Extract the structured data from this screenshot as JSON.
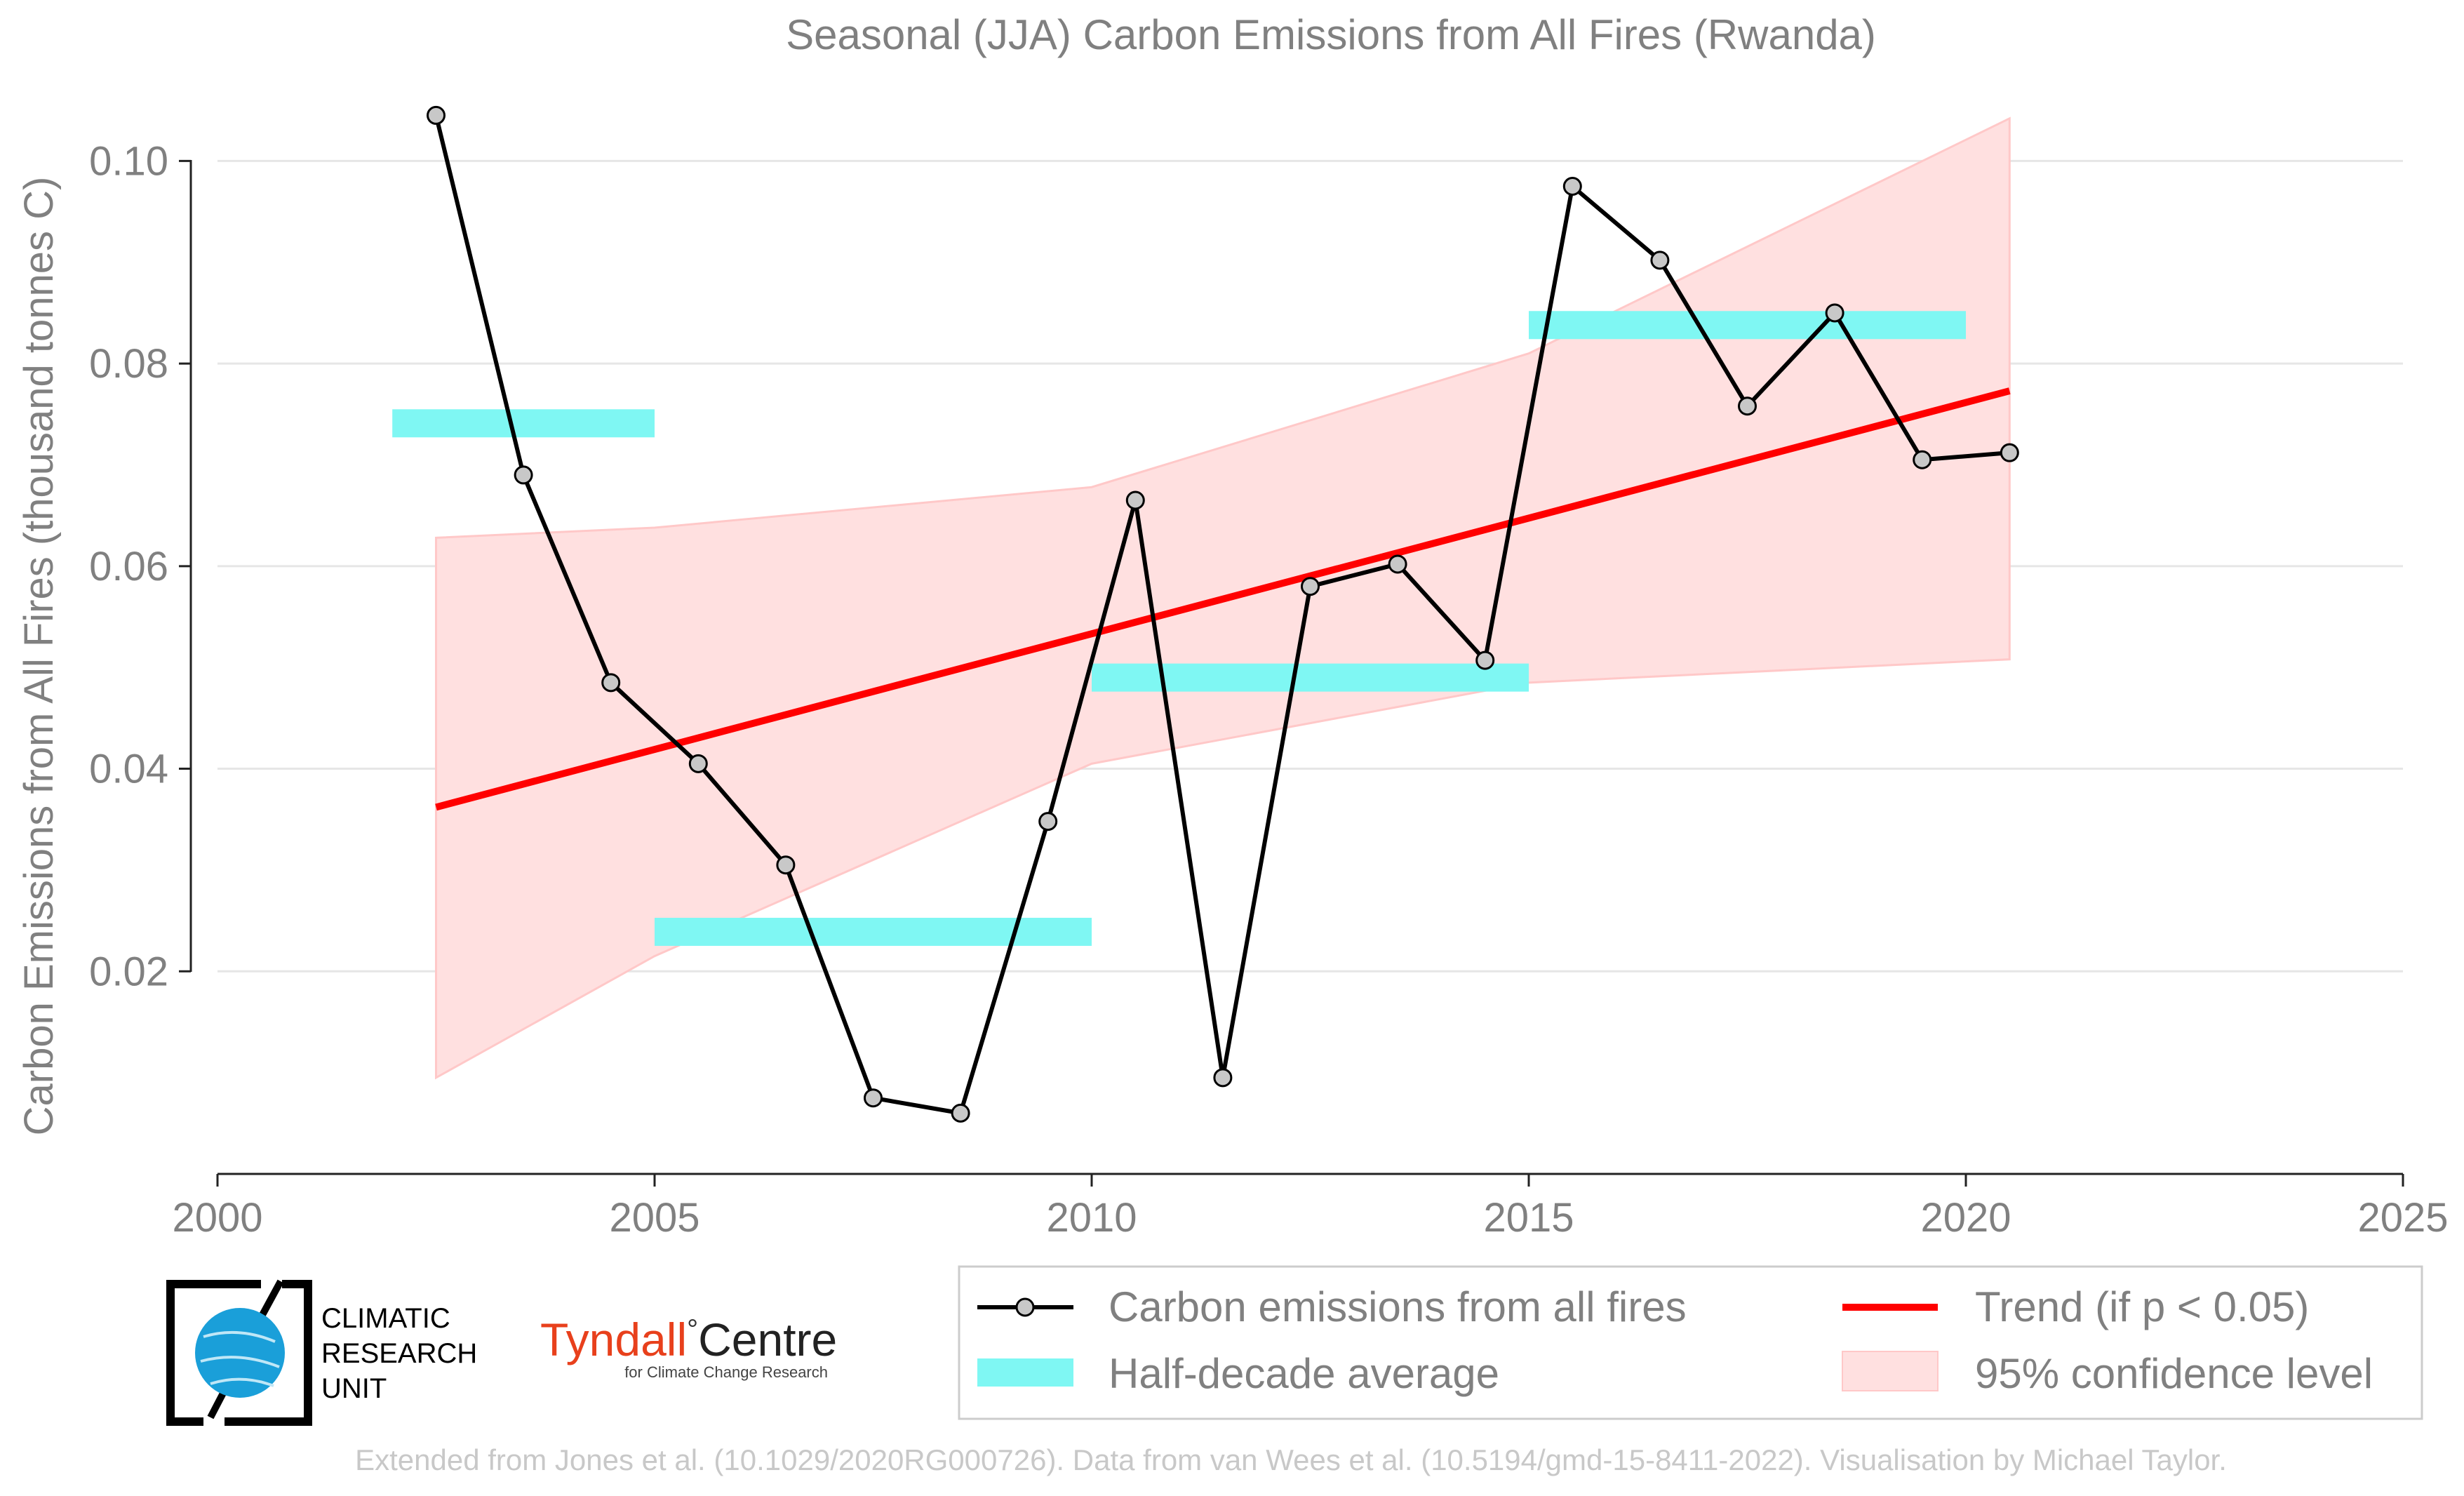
{
  "chart_data": {
    "type": "line",
    "title": "Seasonal (JJA) Carbon Emissions from All Fires (Rwanda)",
    "xlabel": "",
    "ylabel": "Carbon Emissions from All Fires (thousand tonnes C)",
    "xlim": [
      2000,
      2025
    ],
    "ylim": [
      0.0,
      0.1055
    ],
    "x_ticks": [
      2000,
      2005,
      2010,
      2015,
      2020,
      2025
    ],
    "x_tick_labels": [
      "2000",
      "2005",
      "2010",
      "2015",
      "2020",
      "2025"
    ],
    "y_ticks": [
      0.02,
      0.04,
      0.06,
      0.08,
      0.1
    ],
    "y_tick_labels": [
      "0.02",
      "0.04",
      "0.06",
      "0.08",
      "0.10"
    ],
    "grid": "horizontal",
    "legend_placement": "bottom-right",
    "series": [
      {
        "name": "Carbon emissions from all fires",
        "style": "line-with-markers",
        "color": "#000000",
        "marker_fill": "#c8c8c8",
        "x": [
          2002.5,
          2003.5,
          2004.5,
          2005.5,
          2006.5,
          2007.5,
          2008.5,
          2009.5,
          2010.5,
          2011.5,
          2012.5,
          2013.5,
          2014.5,
          2015.5,
          2016.5,
          2017.5,
          2018.5,
          2019.5,
          2020.5
        ],
        "values": [
          0.1045,
          0.069,
          0.0485,
          0.0405,
          0.0305,
          0.0075,
          0.006,
          0.0348,
          0.0665,
          0.0095,
          0.058,
          0.0602,
          0.0507,
          0.0975,
          0.0902,
          0.0758,
          0.085,
          0.0705,
          0.0712
        ]
      },
      {
        "name": "Half-decade average",
        "style": "horizontal-bars",
        "color": "#7ff7f3",
        "segments": [
          {
            "x_start": 2002,
            "x_end": 2005,
            "value": 0.0741
          },
          {
            "x_start": 2005,
            "x_end": 2010,
            "value": 0.0239
          },
          {
            "x_start": 2010,
            "x_end": 2015,
            "value": 0.049
          },
          {
            "x_start": 2015,
            "x_end": 2020,
            "value": 0.0838
          }
        ]
      },
      {
        "name": "Trend (if p < 0.05)",
        "style": "line",
        "color": "#ff0000",
        "x": [
          2002.5,
          2020.5
        ],
        "values": [
          0.0362,
          0.0773
        ]
      },
      {
        "name": "95% confidence level",
        "style": "band",
        "color": "#ffd9d9",
        "x": [
          2002.5,
          2005,
          2010,
          2015,
          2020.5
        ],
        "lower": [
          0.0095,
          0.0215,
          0.0405,
          0.0485,
          0.0508
        ],
        "upper": [
          0.0628,
          0.0638,
          0.0678,
          0.081,
          0.1042
        ]
      }
    ]
  },
  "logos": {
    "cru_line1": "CLIMATIC",
    "cru_line2": "RESEARCH",
    "cru_line3": "UNIT",
    "tyndall_word1": "Tyndall",
    "tyndall_degree": "°",
    "tyndall_word2": "Centre",
    "tyndall_sub": "for Climate Change Research"
  },
  "credit": "Extended from Jones et al. (10.1029/2020RG000726). Data from van Wees et al. (10.5194/gmd-15-8411-2022). Visualisation by Michael Taylor.",
  "colors": {
    "text_grey": "#808080",
    "credit_grey": "#c8c8c8",
    "grid": "#e6e6e6",
    "cru_blue": "#1a9fd9",
    "tyndall_red": "#e8401c"
  }
}
